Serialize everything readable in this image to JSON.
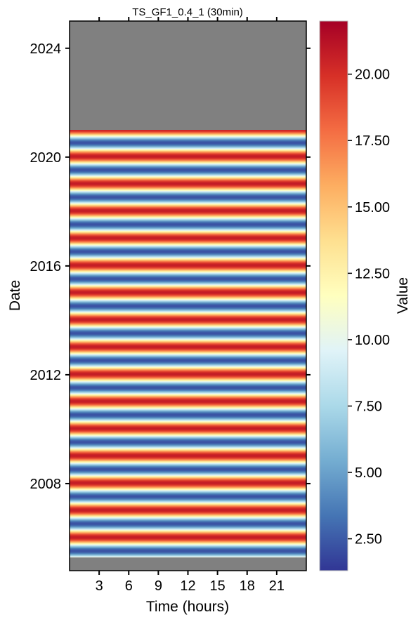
{
  "chart_data": {
    "type": "heatmap",
    "title": "TS_GF1_0.4_1 (30min)",
    "xlabel": "Time (hours)",
    "ylabel": "Date",
    "x_ticks": [
      3,
      6,
      9,
      12,
      15,
      18,
      21
    ],
    "x_range_hours": [
      0,
      24
    ],
    "y_ticks": [
      2008,
      2012,
      2016,
      2020,
      2024
    ],
    "y_range_years": [
      2004.8,
      2025.0
    ],
    "data_range_years": [
      2005.3,
      2021.0
    ],
    "missing_color": "#808080",
    "colorbar": {
      "label": "Value",
      "min": 1.3,
      "max": 22.0,
      "ticks": [
        "2.50",
        "5.00",
        "7.50",
        "10.00",
        "12.50",
        "15.00",
        "17.50",
        "20.00"
      ],
      "colormap": "RdYlBu_r",
      "colors": [
        "#313695",
        "#4575b4",
        "#74add1",
        "#abd9e9",
        "#e0f3f8",
        "#ffffbf",
        "#fee090",
        "#fdae61",
        "#f46d43",
        "#d73027",
        "#a50026"
      ]
    },
    "seasonal_cycle": {
      "period_years": 1,
      "summer_peak_value": 21.0,
      "winter_trough_value": 2.5,
      "annual_mean_value": 11.5
    }
  }
}
